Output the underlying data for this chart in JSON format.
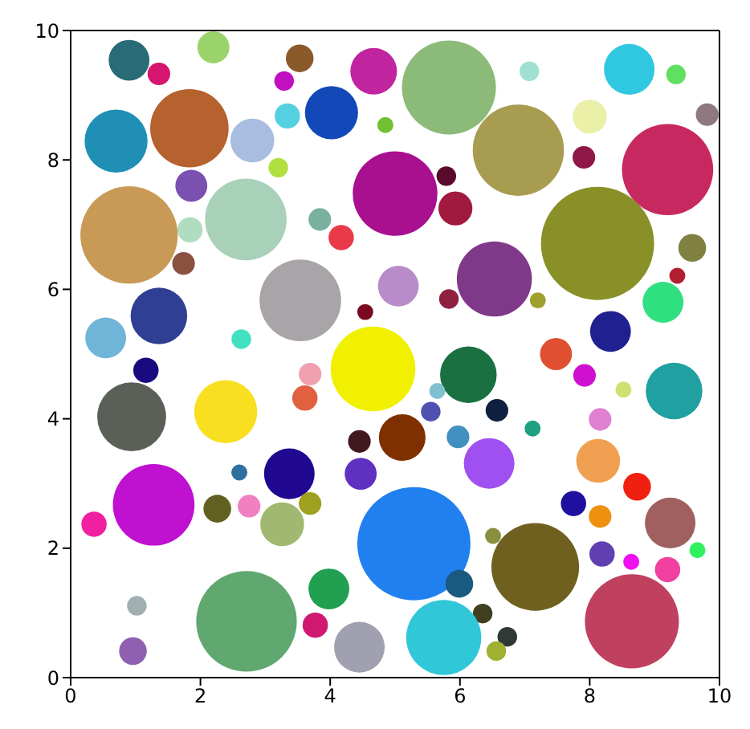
{
  "chart_data": {
    "type": "bubble",
    "x": [
      0.9,
      1.36,
      2.2,
      3.53,
      3.29,
      4.67,
      0.7,
      1.83,
      2.8,
      3.34,
      4.02,
      4.85,
      3.2,
      1.86,
      0.9,
      1.84,
      2.7,
      3.84,
      4.17,
      1.74,
      3.54,
      4.54,
      1.36,
      0.54,
      2.63,
      5.0,
      5.05,
      4.66,
      5.83,
      7.07,
      8.61,
      9.33,
      6.9,
      8.0,
      9.81,
      7.91,
      9.2,
      5.79,
      5.93,
      8.12,
      9.58,
      9.35,
      6.53,
      5.83,
      7.2,
      9.13,
      8.32,
      1.16,
      0.94,
      2.39,
      3.69,
      3.61,
      4.45,
      5.11,
      4.47,
      1.28,
      0.36,
      2.6,
      3.37,
      2.26,
      2.75,
      3.69,
      3.26,
      5.29,
      3.98,
      3.77,
      4.45,
      2.71,
      1.02,
      0.96,
      6.13,
      5.65,
      5.55,
      6.57,
      7.12,
      5.97,
      6.45,
      7.48,
      7.92,
      8.52,
      9.3,
      8.16,
      8.13,
      8.73,
      7.75,
      8.16,
      9.24,
      9.66,
      6.51,
      7.16,
      8.19,
      8.64,
      9.2,
      5.99,
      6.35,
      6.73,
      6.56,
      5.75,
      8.65
    ],
    "values": [
      9.54,
      9.33,
      9.74,
      9.57,
      9.22,
      9.37,
      8.29,
      8.49,
      8.3,
      8.68,
      8.73,
      8.54,
      7.88,
      7.6,
      6.84,
      6.92,
      7.08,
      7.08,
      6.8,
      6.4,
      5.83,
      5.65,
      5.59,
      5.25,
      5.23,
      7.48,
      6.05,
      4.77,
      9.12,
      9.37,
      9.4,
      9.32,
      8.15,
      8.67,
      8.7,
      8.04,
      7.85,
      7.75,
      7.25,
      6.71,
      6.64,
      6.21,
      6.16,
      5.85,
      5.83,
      5.8,
      5.35,
      4.75,
      4.03,
      4.11,
      4.69,
      4.32,
      3.65,
      3.71,
      3.15,
      2.67,
      2.37,
      3.17,
      3.15,
      2.61,
      2.65,
      2.69,
      2.37,
      2.07,
      1.37,
      0.81,
      0.47,
      0.87,
      1.11,
      0.41,
      4.68,
      4.43,
      4.11,
      4.13,
      3.85,
      3.72,
      3.31,
      5.0,
      4.67,
      4.45,
      4.43,
      3.99,
      3.35,
      2.95,
      2.69,
      2.49,
      2.39,
      1.97,
      2.19,
      1.71,
      1.91,
      1.79,
      1.67,
      1.45,
      0.99,
      0.63,
      0.41,
      0.62,
      0.87
    ],
    "sizes": [
      0.13,
      0.04,
      0.08,
      0.06,
      0.03,
      0.17,
      0.31,
      0.48,
      0.15,
      0.05,
      0.22,
      0.02,
      0.03,
      0.08,
      0.74,
      0.05,
      0.52,
      0.04,
      0.05,
      0.04,
      0.52,
      0.02,
      0.25,
      0.13,
      0.03,
      0.56,
      0.13,
      0.56,
      0.69,
      0.03,
      0.2,
      0.03,
      0.65,
      0.09,
      0.04,
      0.04,
      0.65,
      0.03,
      0.09,
      1,
      0.06,
      0.02,
      0.44,
      0.03,
      0.02,
      0.13,
      0.13,
      0.05,
      0.37,
      0.31,
      0.04,
      0.05,
      0.04,
      0.17,
      0.08,
      0.52,
      0.05,
      0.02,
      0.2,
      0.06,
      0.04,
      0.04,
      0.15,
      1,
      0.13,
      0.05,
      0.2,
      0.79,
      0.03,
      0.06,
      0.25,
      0.02,
      0.03,
      0.04,
      0.02,
      0.04,
      0.2,
      0.08,
      0.04,
      0.02,
      0.25,
      0.04,
      0.15,
      0.06,
      0.05,
      0.04,
      0.2,
      0.02,
      0.02,
      0.6,
      0.05,
      0.02,
      0.05,
      0.06,
      0.03,
      0.03,
      0.03,
      0.44,
      0.69
    ],
    "colors": [
      "#2a6b78",
      "#d6156f",
      "#9ad36a",
      "#8b5a2b",
      "#c010c0",
      "#c0259f",
      "#1f8fb5",
      "#b5622f",
      "#a8bde0",
      "#55d0e0",
      "#1248b8",
      "#70c030",
      "#b0e040",
      "#7a50b0",
      "#c89a56",
      "#b0dcc0",
      "#a9d0b8",
      "#7ab0a0",
      "#e83a48",
      "#8a5040",
      "#a8a4a8",
      "#7a0a20",
      "#2f3f94",
      "#70b4d8",
      "#40e0c0",
      "#a8108f",
      "#b88cc8",
      "#f0f000",
      "#8cba78",
      "#a0e0d0",
      "#30c8e0",
      "#60e060",
      "#a89c50",
      "#eaf0a8",
      "#907880",
      "#901848",
      "#c82860",
      "#5a0a2a",
      "#a01a40",
      "#8a9028",
      "#808040",
      "#b02030",
      "#803888",
      "#902040",
      "#a0a030",
      "#30e080",
      "#202090",
      "#1a0a80",
      "#5a6058",
      "#f8e020",
      "#f0a0b0",
      "#e06040",
      "#401820",
      "#803000",
      "#6030c0",
      "#c010d0",
      "#f020a0",
      "#3070a0",
      "#200890",
      "#606020",
      "#f080c0",
      "#a0a020",
      "#a0b870",
      "#2080f0",
      "#20a050",
      "#d01870",
      "#a0a0b0",
      "#60a870",
      "#a0b0b0",
      "#9060b0",
      "#1a7040",
      "#80c0d0",
      "#5050b0",
      "#102040",
      "#20a080",
      "#4090c0",
      "#a050f0",
      "#e05030",
      "#d010d0",
      "#d0e070",
      "#20a0a0",
      "#e080d0",
      "#f0a050",
      "#f02010",
      "#2010a0",
      "#f09010",
      "#a06060",
      "#30f060",
      "#8a9040",
      "#706020",
      "#6040b0",
      "#f010f0",
      "#f040a0",
      "#1a5a80",
      "#404020",
      "#303838",
      "#a0b030",
      "#30c8d8",
      "#c04060"
    ],
    "xlim": [
      0,
      10
    ],
    "ylim": [
      0,
      10
    ],
    "xticks": [
      0,
      2,
      4,
      6,
      8,
      10
    ],
    "yticks": [
      0,
      2,
      4,
      6,
      8,
      10
    ]
  }
}
